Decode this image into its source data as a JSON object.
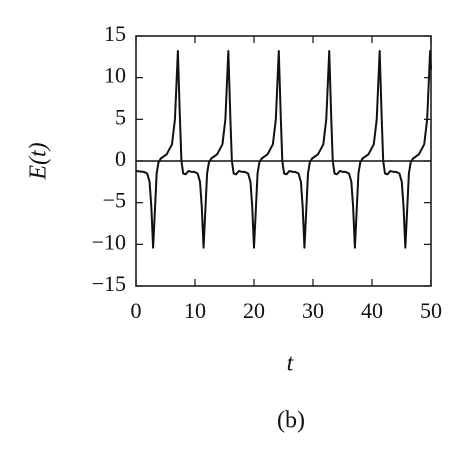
{
  "chart_data": {
    "type": "line",
    "ylabel": "E(t)",
    "xlabel": "t",
    "caption": "(b)",
    "x": [
      0,
      1.3,
      1.9,
      2.3,
      2.6,
      2.9,
      3.2,
      3.5,
      3.8,
      4.2,
      5.2,
      6.1,
      6.6,
      7.1,
      7.45,
      7.7,
      8.0,
      8.4,
      8.9,
      9.4,
      9.85,
      10.45,
      10.85,
      11.15,
      11.45,
      11.75,
      12.05,
      12.35,
      12.75,
      13.75,
      14.65,
      15.15,
      15.65,
      16.0,
      16.25,
      16.55,
      16.95,
      17.45,
      17.95,
      18.4,
      19.0,
      19.4,
      19.7,
      20.0,
      20.3,
      20.6,
      20.9,
      21.3,
      22.3,
      23.2,
      23.7,
      24.2,
      24.55,
      24.8,
      25.1,
      25.5,
      26.0,
      26.5,
      26.95,
      27.55,
      27.95,
      28.25,
      28.55,
      28.85,
      29.15,
      29.45,
      29.85,
      30.85,
      31.75,
      32.25,
      32.75,
      33.1,
      33.35,
      33.65,
      34.05,
      34.55,
      35.05,
      35.5,
      36.1,
      36.5,
      36.8,
      37.1,
      37.4,
      37.7,
      38.0,
      38.4,
      39.4,
      40.3,
      40.8,
      41.3,
      41.65,
      41.9,
      42.2,
      42.6,
      43.1,
      43.6,
      44.05,
      44.65,
      45.05,
      45.35,
      45.65,
      45.95,
      46.25,
      46.55,
      46.95,
      47.95,
      48.85,
      49.35,
      49.85,
      50
    ],
    "series": [
      {
        "color": "#111111",
        "values": [
          -1.2,
          -1.3,
          -1.5,
          -2.5,
          -5.5,
          -10.4,
          -6,
          -1.5,
          -0.2,
          0.3,
          0.8,
          2,
          5,
          13.2,
          5,
          0,
          -1.5,
          -1.6,
          -1.2,
          -1.3,
          -1.3,
          -1.5,
          -2.5,
          -5.5,
          -10.4,
          -6,
          -1.5,
          -0.2,
          0.3,
          0.8,
          2,
          5,
          13.2,
          5,
          0,
          -1.5,
          -1.6,
          -1.2,
          -1.3,
          -1.3,
          -1.5,
          -2.5,
          -5.5,
          -10.4,
          -6,
          -1.5,
          -0.2,
          0.3,
          0.8,
          2,
          5,
          13.2,
          5,
          0,
          -1.5,
          -1.6,
          -1.2,
          -1.3,
          -1.3,
          -1.5,
          -2.5,
          -5.5,
          -10.4,
          -6,
          -1.5,
          -0.2,
          0.3,
          0.8,
          2,
          5,
          13.2,
          5,
          0,
          -1.5,
          -1.6,
          -1.2,
          -1.3,
          -1.3,
          -1.5,
          -2.5,
          -5.5,
          -10.4,
          -6,
          -1.5,
          -0.2,
          0.3,
          0.8,
          2,
          5,
          13.2,
          5,
          0,
          -1.5,
          -1.6,
          -1.2,
          -1.3,
          -1.3,
          -1.5,
          -2.5,
          -5.5,
          -10.4,
          -6,
          -1.5,
          -0.2,
          0.3,
          0.8,
          2,
          5,
          13.2,
          11
        ]
      }
    ],
    "xlim": [
      0,
      50
    ],
    "xticks": [
      0,
      10,
      20,
      30,
      40,
      50
    ],
    "ylim": [
      -15,
      15
    ],
    "yticks": [
      {
        "value": -15,
        "label": "−15"
      },
      {
        "value": -10,
        "label": "−10"
      },
      {
        "value": -5,
        "label": "−5"
      },
      0,
      5,
      10,
      15
    ],
    "zero_line": true
  }
}
